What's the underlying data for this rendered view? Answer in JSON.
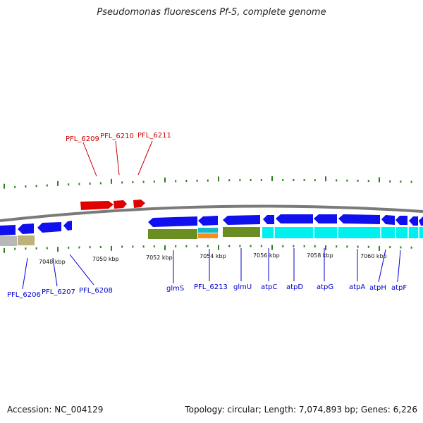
{
  "title": "Pseudomonas fluorescens Pf-5, complete genome",
  "footer": {
    "accession": "Accession: NC_004129",
    "summary": "Topology: circular; Length: 7,074,893 bp; Genes: 6,226"
  },
  "colors": {
    "background": "#ffffff",
    "backbone": "#7a7a7a",
    "tick": "#2e7d1e",
    "forward_gene": "#e00000",
    "reverse_gene": "#1010ee",
    "forward_label": "#cc0000",
    "reverse_label": "#0000cc",
    "feature_gray": "#b8b8b8",
    "feature_olive": "#bdb27a",
    "feature_green": "#6b8e23",
    "feature_teal": "#17b8c8",
    "feature_orange": "#ff8c1a",
    "feature_cyan": "#00f0f0"
  },
  "ruler": {
    "scale_labels": [
      "7048 kbp",
      "7050 kbp",
      "7052 kbp",
      "7054 kbp",
      "7056 kbp",
      "7058 kbp",
      "7060 kbp"
    ]
  },
  "genes": {
    "forward": [
      "PFL_6209",
      "PFL_6210",
      "PFL_6211"
    ],
    "reverse": [
      "PFL_6206",
      "PFL_6207",
      "PFL_6208",
      "glmS",
      "PFL_6213",
      "glmU",
      "atpC",
      "atpD",
      "atpG",
      "atpA",
      "atpH",
      "atpF"
    ]
  }
}
